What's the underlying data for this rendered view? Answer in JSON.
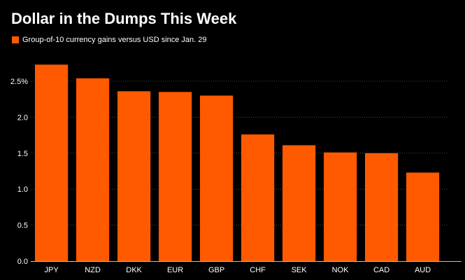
{
  "colors": {
    "background": "#000000",
    "bar": "#ff5a00",
    "text": "#ffffff",
    "grid": "#4a4a4a",
    "axis": "#bfbfbf"
  },
  "chart_data": {
    "type": "bar",
    "title": "Dollar in the Dumps This Week",
    "series": [
      {
        "name": "Group-of-10 currency gains versus USD since Jan. 29",
        "values": [
          2.73,
          2.54,
          2.36,
          2.35,
          2.3,
          1.76,
          1.61,
          1.51,
          1.5,
          1.23
        ]
      }
    ],
    "categories": [
      "JPY",
      "NZD",
      "DKK",
      "EUR",
      "GBP",
      "CHF",
      "SEK",
      "NOK",
      "CAD",
      "AUD"
    ],
    "xlabel": "",
    "ylabel": "",
    "ylim": [
      0,
      2.85
    ],
    "yticks": [
      0,
      0.5,
      1.0,
      1.5,
      2.0,
      2.5
    ],
    "ytick_labels": [
      "0.0",
      "0.5",
      "1.0",
      "1.5",
      "2.0",
      "2.5%"
    ],
    "grid": true,
    "legend_position": "top-left"
  }
}
